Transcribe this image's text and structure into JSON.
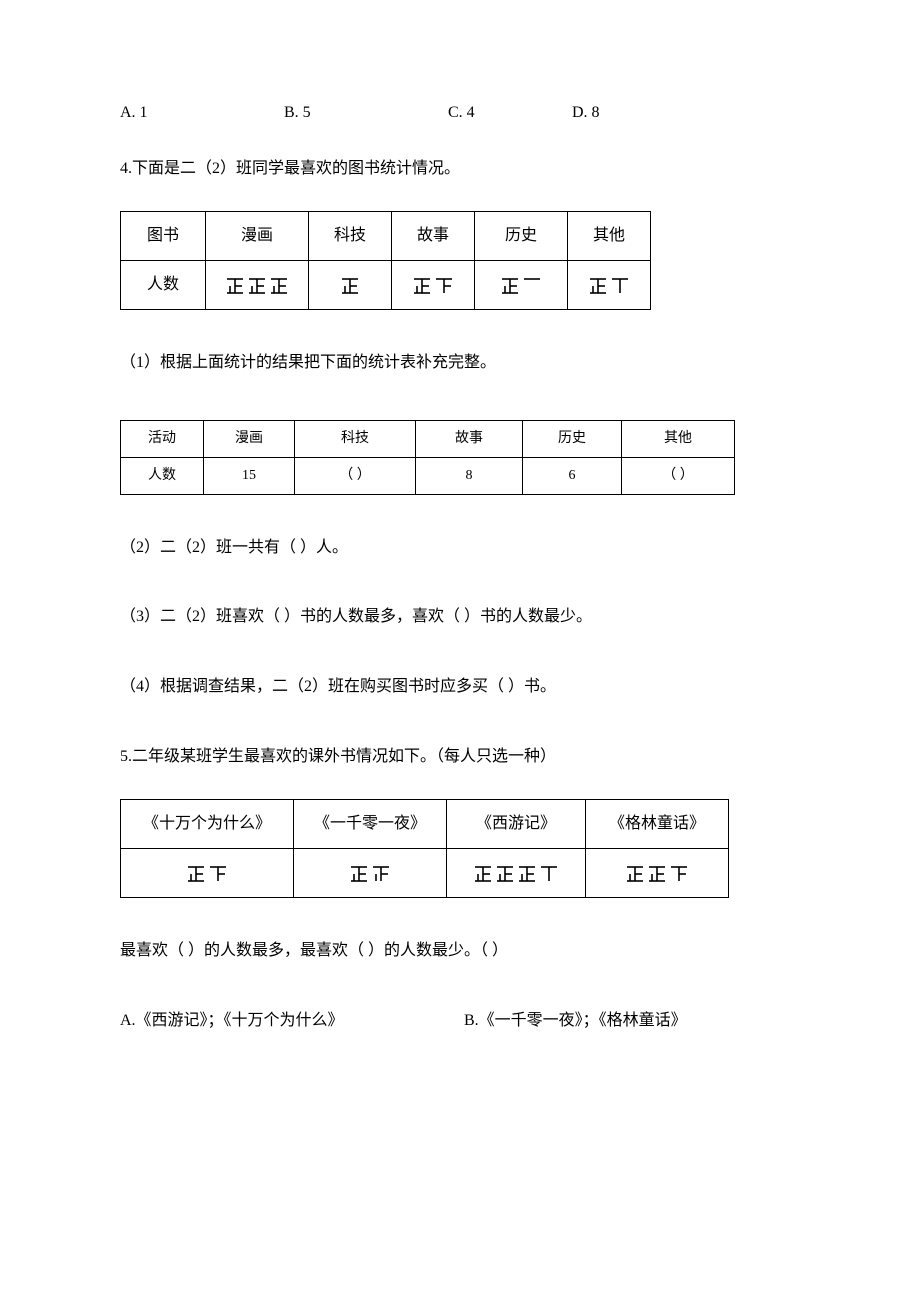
{
  "q3": {
    "options": {
      "a": "A. 1",
      "b": "B. 5",
      "c": "C. 4",
      "d": "D. 8"
    }
  },
  "q4": {
    "stem": "4.下面是二（2）班同学最喜欢的图书统计情况。",
    "table1": {
      "headers": [
        "图书",
        "漫画",
        "科技",
        "故事",
        "历史",
        "其他"
      ],
      "rowLabel": "人数",
      "tally": {
        "manga": {
          "full": 3,
          "extra": 0
        },
        "tech": {
          "full": 1,
          "extra": 0
        },
        "story": {
          "full": 1,
          "extra": 3
        },
        "history": {
          "full": 1,
          "extra": 1
        },
        "other": {
          "full": 1,
          "extra": 2
        }
      }
    },
    "sub1": "（1）根据上面统计的结果把下面的统计表补充完整。",
    "table2": {
      "headers": [
        "活动",
        "漫画",
        "科技",
        "故事",
        "历史",
        "其他"
      ],
      "rowLabel": "人数",
      "values": [
        "15",
        "（   ）",
        "8",
        "6",
        "（   ）"
      ]
    },
    "sub2": "（2）二（2）班一共有（     ）人。",
    "sub3": "（3）二（2）班喜欢（     ）书的人数最多，喜欢（     ）书的人数最少。",
    "sub4": "（4）根据调查结果，二（2）班在购买图书时应多买（     ）书。"
  },
  "q5": {
    "stem": "5.二年级某班学生最喜欢的课外书情况如下。（每人只选一种）",
    "table": {
      "headers": [
        "《十万个为什么》",
        "《一千零一夜》",
        "《西游记》",
        "《格林童话》"
      ],
      "tally": {
        "why": {
          "full": 1,
          "extra": 3
        },
        "nights": {
          "full": 1,
          "extra": 4
        },
        "xiyou": {
          "full": 3,
          "extra": 2
        },
        "grimm": {
          "full": 2,
          "extra": 3
        }
      }
    },
    "blank": "最喜欢（     ）的人数最多，最喜欢（     ）的人数最少。（     ）",
    "optA": "A.《西游记》；《十万个为什么》",
    "optB": "B.《一千零一夜》；《格林童话》"
  },
  "style": {
    "tally_stroke": "#000000",
    "tally_stroke_width": 1.6
  }
}
